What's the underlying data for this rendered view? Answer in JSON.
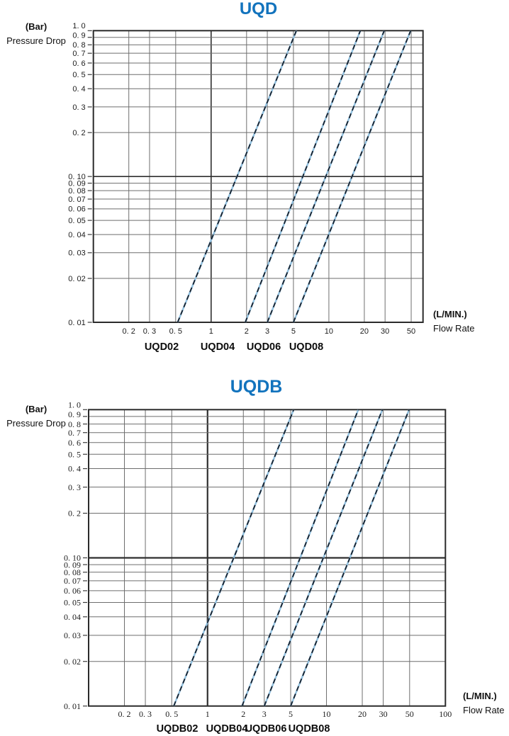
{
  "chart_data": [
    {
      "type": "line",
      "title": "UQD",
      "title_color": "#1273bd",
      "ylabel_unit": "(Bar)",
      "ylabel_name": "Pressure Drop",
      "xlabel_unit": "(L/MIN.)",
      "xlabel_name": "Flow Rate",
      "x_scale": "log",
      "y_scale": "log",
      "xlim": [
        0.1,
        63
      ],
      "ylim": [
        0.01,
        1.0
      ],
      "grid": true,
      "legend": "model labels below x-axis",
      "x_ticks": {
        "values": [
          0.2,
          0.3,
          0.5,
          1,
          2,
          3,
          5,
          10,
          20,
          30,
          50
        ],
        "labels": [
          "0. 2",
          "0. 3",
          "0. 5",
          "1",
          "2",
          "3",
          "5",
          "10",
          "20",
          "30",
          "50"
        ]
      },
      "y_ticks": {
        "values": [
          1.0,
          0.9,
          0.8,
          0.7,
          0.6,
          0.5,
          0.4,
          0.3,
          0.2,
          0.1,
          0.09,
          0.08,
          0.07,
          0.06,
          0.05,
          0.04,
          0.03,
          0.02,
          0.01
        ],
        "labels": [
          "1. 0",
          "0. 9",
          "0. 8",
          "0. 7",
          "0. 6",
          "0. 5",
          "0. 4",
          "0. 3",
          "0. 2",
          "0. 10",
          "0. 09",
          "0. 08",
          "0. 07",
          "0. 06",
          "0. 05",
          "0. 04",
          "0. 03",
          "0. 02",
          "0. 01"
        ]
      },
      "series": [
        {
          "name": "UQD02",
          "points": [
            [
              0.52,
              0.01
            ],
            [
              5.3,
              1.0
            ]
          ]
        },
        {
          "name": "UQD04",
          "points": [
            [
              1.95,
              0.01
            ],
            [
              18.5,
              1.0
            ]
          ]
        },
        {
          "name": "UQD06",
          "points": [
            [
              3.0,
              0.01
            ],
            [
              29.5,
              1.0
            ]
          ]
        },
        {
          "name": "UQD08",
          "points": [
            [
              5.0,
              0.01
            ],
            [
              49.5,
              1.0
            ]
          ]
        }
      ],
      "line_style": {
        "dashed": true,
        "dash_color": "#16212e",
        "halo_color": "#8fbedd"
      }
    },
    {
      "type": "line",
      "title": "UQDB",
      "title_color": "#1273bd",
      "ylabel_unit": "(Bar)",
      "ylabel_name": "Pressure Drop",
      "xlabel_unit": "(L/MIN.)",
      "xlabel_name": "Flow Rate",
      "x_scale": "log",
      "y_scale": "log",
      "xlim": [
        0.1,
        100
      ],
      "ylim": [
        0.01,
        1.0
      ],
      "grid": true,
      "legend": "model labels below x-axis",
      "x_ticks": {
        "values": [
          0.2,
          0.3,
          0.5,
          1,
          2,
          3,
          5,
          10,
          20,
          30,
          50,
          100
        ],
        "labels": [
          "0. 2",
          "0. 3",
          "0. 5",
          "1",
          "2",
          "3",
          "5",
          "10",
          "20",
          "30",
          "50",
          "100"
        ]
      },
      "y_ticks": {
        "values": [
          1.0,
          0.9,
          0.8,
          0.7,
          0.6,
          0.5,
          0.4,
          0.3,
          0.2,
          0.1,
          0.09,
          0.08,
          0.07,
          0.06,
          0.05,
          0.04,
          0.03,
          0.02,
          0.01
        ],
        "labels": [
          "1. 0",
          "0. 9",
          "0. 8",
          "0. 7",
          "0. 6",
          "0. 5",
          "0. 4",
          "0. 3",
          "0. 2",
          "0. 10",
          "0. 09",
          "0. 08",
          "0. 07",
          "0. 06",
          "0. 05",
          "0. 04",
          "0. 03",
          "0. 02",
          "0. 01"
        ]
      },
      "series": [
        {
          "name": "UQDB02",
          "points": [
            [
              0.52,
              0.01
            ],
            [
              5.3,
              1.0
            ]
          ]
        },
        {
          "name": "UQDB04",
          "points": [
            [
              1.95,
              0.01
            ],
            [
              18.5,
              1.0
            ]
          ]
        },
        {
          "name": "UQDB06",
          "points": [
            [
              3.0,
              0.01
            ],
            [
              29.5,
              1.0
            ]
          ]
        },
        {
          "name": "UQDB08",
          "points": [
            [
              5.0,
              0.01
            ],
            [
              49.5,
              1.0
            ]
          ]
        }
      ],
      "line_style": {
        "dashed": true,
        "dash_color": "#16212e",
        "halo_color": "#8fbedd"
      }
    }
  ]
}
